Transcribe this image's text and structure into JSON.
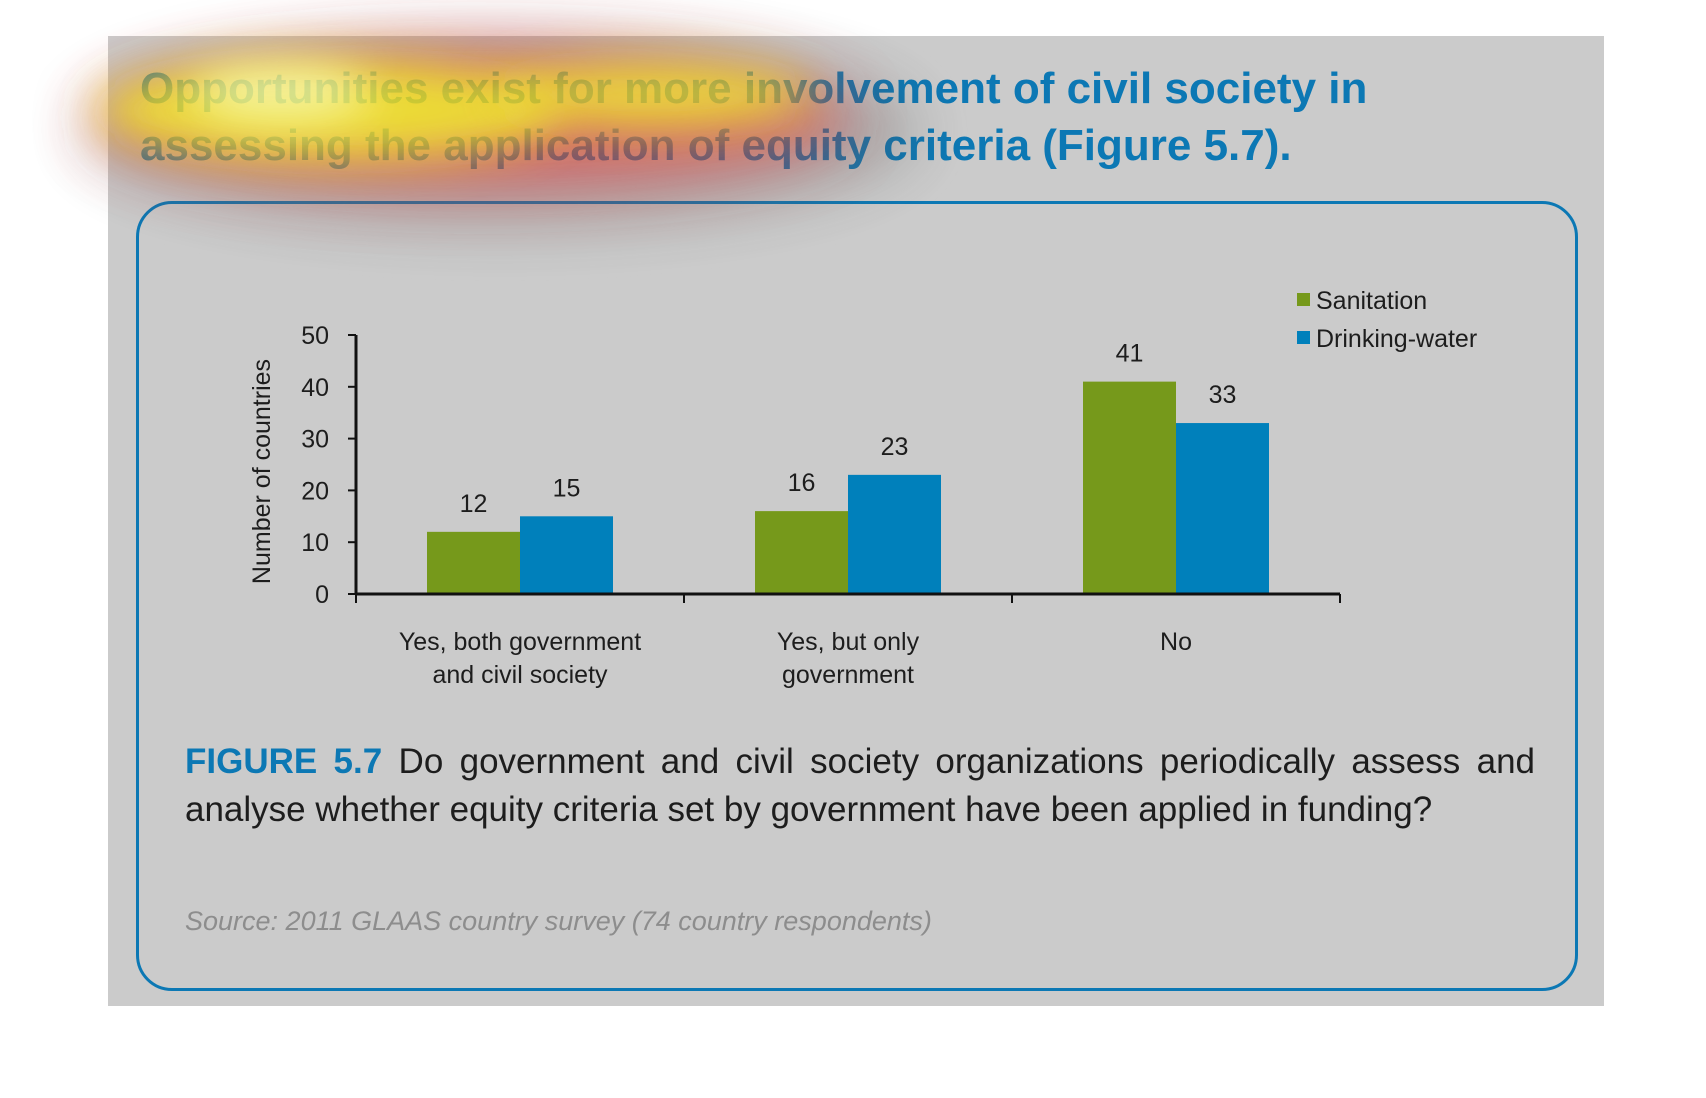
{
  "slide": {
    "headline": "Opportunities exist for more involvement of civil society in assessing the application of equity criteria (Figure 5.7).",
    "caption_label": "FIGURE 5.7",
    "caption_text": " Do government and civil society organizations periodically assess and analyse whether equity criteria set by government have been applied in funding?",
    "source": "Source: 2011 GLAAS country survey (74 country respondents)"
  },
  "colors": {
    "accent": "#0c78b4",
    "sanitation": "#76991b",
    "drinking_water": "#0080bb",
    "background": "#cbcbcb"
  },
  "chart_data": {
    "type": "bar",
    "title": "",
    "xlabel": "",
    "ylabel": "Number of countries",
    "categories": [
      "Yes, both government\nand civil society",
      "Yes, but only\ngovernment",
      "No"
    ],
    "series": [
      {
        "name": "Sanitation",
        "values": [
          12,
          16,
          41
        ]
      },
      {
        "name": "Drinking-water",
        "values": [
          15,
          23,
          33
        ]
      }
    ],
    "ylim": [
      0,
      50
    ],
    "yticks": [
      0,
      10,
      20,
      30,
      40,
      50
    ],
    "data_labels": true,
    "grid": false,
    "legend": "top-right"
  }
}
